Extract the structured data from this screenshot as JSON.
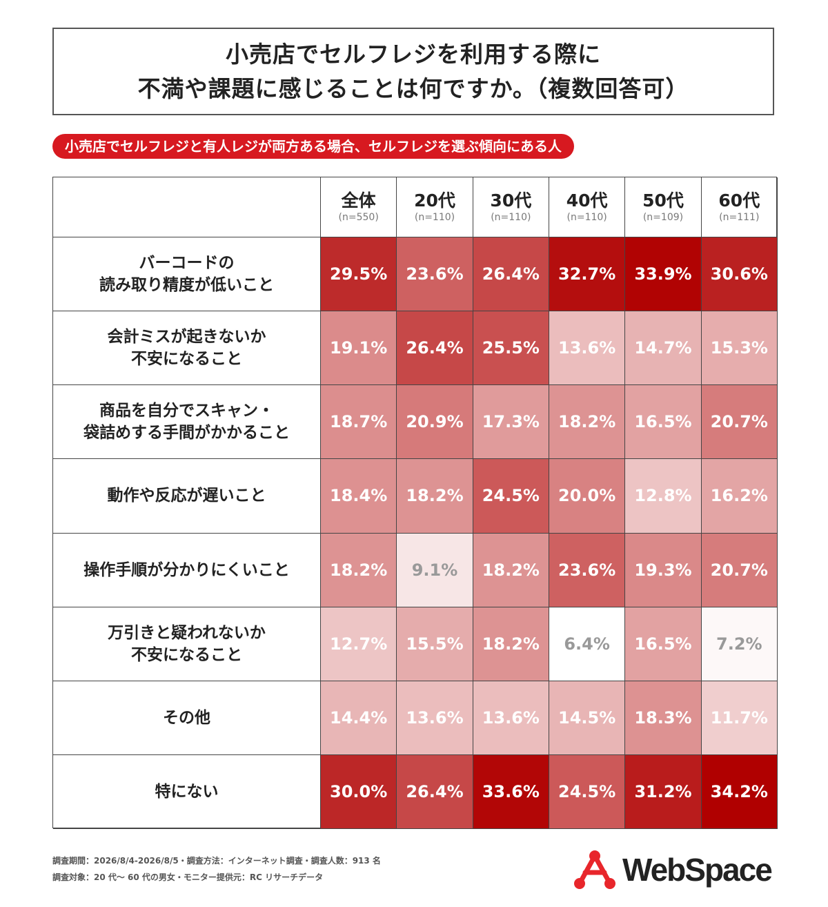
{
  "title": {
    "line1": "小売店でセルフレジを利用する際に",
    "line2": "不満や課題に感じることは何ですか。（複数回答可）"
  },
  "subtitle": "小売店でセルフレジと有人レジが両方ある場合、セルフレジを選ぶ傾向にある人",
  "colors": {
    "accent": "#d71920",
    "heat_low": "#ffffff",
    "heat_high": "#b00000"
  },
  "chart_data": {
    "type": "heatmap",
    "unit": "%",
    "columns": [
      {
        "label": "全体",
        "n": "(n=550)"
      },
      {
        "label": "20代",
        "n": "(n=110)"
      },
      {
        "label": "30代",
        "n": "(n=110)"
      },
      {
        "label": "40代",
        "n": "(n=110)"
      },
      {
        "label": "50代",
        "n": "(n=109)"
      },
      {
        "label": "60代",
        "n": "(n=111)"
      }
    ],
    "rows": [
      {
        "label": [
          "バーコードの",
          "読み取り精度が低いこと"
        ],
        "values": [
          29.5,
          23.6,
          26.4,
          32.7,
          33.9,
          30.6
        ]
      },
      {
        "label": [
          "会計ミスが起きないか",
          "不安になること"
        ],
        "values": [
          19.1,
          26.4,
          25.5,
          13.6,
          14.7,
          15.3
        ]
      },
      {
        "label": [
          "商品を自分でスキャン・",
          "袋詰めする手間がかかること"
        ],
        "values": [
          18.7,
          20.9,
          17.3,
          18.2,
          16.5,
          20.7
        ]
      },
      {
        "label": [
          "動作や反応が遅いこと"
        ],
        "values": [
          18.4,
          18.2,
          24.5,
          20.0,
          12.8,
          16.2
        ]
      },
      {
        "label": [
          "操作手順が分かりにくいこと"
        ],
        "values": [
          18.2,
          9.1,
          18.2,
          23.6,
          19.3,
          20.7
        ]
      },
      {
        "label": [
          "万引きと疑われないか",
          "不安になること"
        ],
        "values": [
          12.7,
          15.5,
          18.2,
          6.4,
          16.5,
          7.2
        ]
      },
      {
        "label": [
          "その他"
        ],
        "values": [
          14.4,
          13.6,
          13.6,
          14.5,
          18.3,
          11.7
        ]
      },
      {
        "label": [
          "特にない"
        ],
        "values": [
          30.0,
          26.4,
          33.6,
          24.5,
          31.2,
          34.2
        ]
      }
    ]
  },
  "footer": {
    "line1": "調査期間：2026/8/4-2026/8/5・調査方法：インターネット調査・調査人数：913 名",
    "line2": "調査対象：20 代～ 60 代の男女・モニター提供元：RC リサーチデータ"
  },
  "logo": {
    "text": "WebSpace",
    "icon": "molecule-logo-icon"
  }
}
